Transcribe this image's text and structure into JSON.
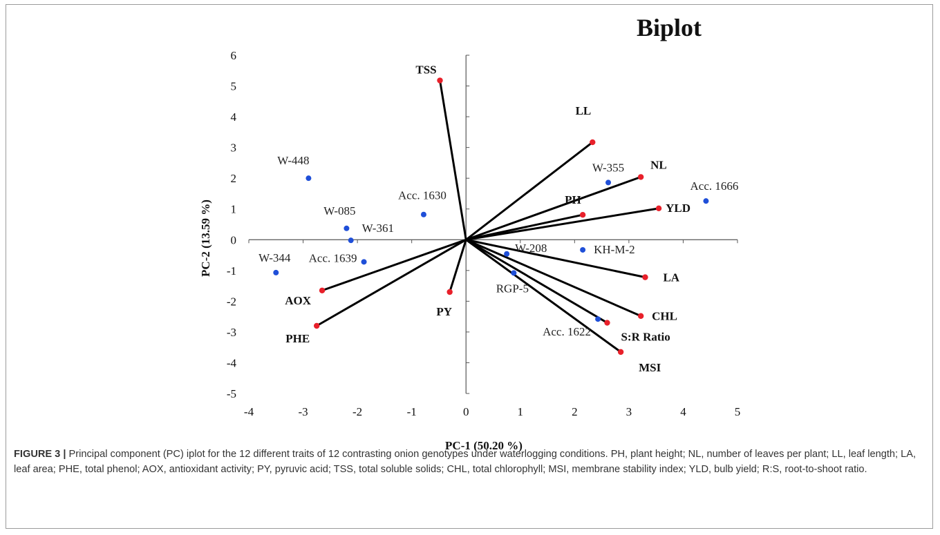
{
  "chart_data": {
    "type": "scatter",
    "title": "Biplot",
    "xlabel": "PC-1 (50.20 %)",
    "ylabel": "PC-2 (13.59 %)",
    "xlim": [
      -4,
      5
    ],
    "ylim": [
      -5,
      6
    ],
    "xticks": [
      -4,
      -3,
      -2,
      -1,
      0,
      1,
      2,
      3,
      4,
      5
    ],
    "yticks": [
      -5,
      -4,
      -3,
      -2,
      -1,
      0,
      1,
      2,
      3,
      4,
      5,
      6
    ],
    "grid": false,
    "axes_through_origin": true,
    "trait_color": "#e8202a",
    "genotype_color": "#1f4fd8",
    "vector_color": "#000000",
    "traits": [
      {
        "name": "TSS",
        "x": -0.48,
        "y": 5.18
      },
      {
        "name": "LL",
        "x": 2.33,
        "y": 3.17
      },
      {
        "name": "NL",
        "x": 3.22,
        "y": 2.04
      },
      {
        "name": "PH",
        "x": 2.15,
        "y": 0.81
      },
      {
        "name": "YLD",
        "x": 3.55,
        "y": 1.02
      },
      {
        "name": "LA",
        "x": 3.3,
        "y": -1.22
      },
      {
        "name": "CHL",
        "x": 3.22,
        "y": -2.48
      },
      {
        "name": "S:R Ratio",
        "x": 2.6,
        "y": -2.7
      },
      {
        "name": "MSI",
        "x": 2.85,
        "y": -3.65
      },
      {
        "name": "PY",
        "x": -0.3,
        "y": -1.7
      },
      {
        "name": "AOX",
        "x": -2.65,
        "y": -1.65
      },
      {
        "name": "PHE",
        "x": -2.75,
        "y": -2.8
      }
    ],
    "genotypes": [
      {
        "name": "W-448",
        "x": -2.9,
        "y": 2.0
      },
      {
        "name": "W-085",
        "x": -2.2,
        "y": 0.37
      },
      {
        "name": "W-361",
        "x": -2.12,
        "y": -0.02
      },
      {
        "name": "Acc. 1630",
        "x": -0.78,
        "y": 0.82
      },
      {
        "name": "W-344",
        "x": -3.5,
        "y": -1.07
      },
      {
        "name": "Acc. 1639",
        "x": -1.88,
        "y": -0.72
      },
      {
        "name": "W-355",
        "x": 2.62,
        "y": 1.86
      },
      {
        "name": "Acc. 1666",
        "x": 4.42,
        "y": 1.26
      },
      {
        "name": "KH-M-2",
        "x": 2.15,
        "y": -0.33
      },
      {
        "name": "W-208",
        "x": 0.75,
        "y": -0.46
      },
      {
        "name": "RGP-5",
        "x": 0.88,
        "y": -1.08
      },
      {
        "name": "Acc. 1622",
        "x": 2.43,
        "y": -2.58
      }
    ]
  },
  "caption": {
    "label": "FIGURE 3",
    "separator": "|",
    "text": "Principal component (PC) iplot for the 12 different traits of 12 contrasting onion genotypes under waterlogging conditions. PH, plant height; NL, number of leaves per plant; LL, leaf length; LA, leaf area; PHE, total phenol; AOX, antioxidant activity; PY, pyruvic acid; TSS, total soluble solids; CHL, total chlorophyll; MSI, membrane stability index; YLD, bulb yield; R:S, root-to-shoot ratio."
  }
}
